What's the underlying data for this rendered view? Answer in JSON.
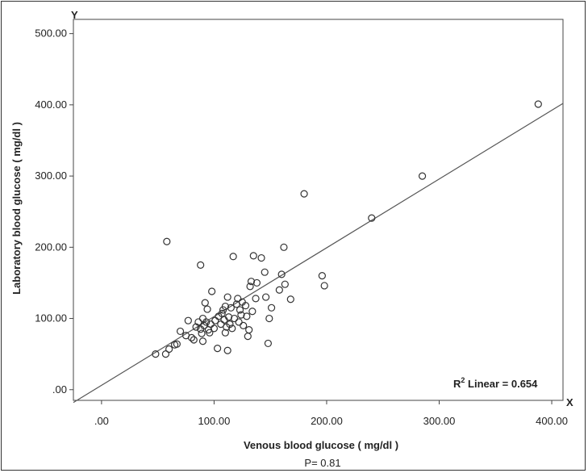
{
  "chart_data": {
    "type": "scatter",
    "xlabel": "Venous blood glucose ( mg/dl )",
    "ylabel": "Laboratory blood glucose ( mg/dl )",
    "x_axis_letter": "X",
    "y_axis_letter": "Y",
    "footnote": "P= 0.81",
    "r2_label": "R",
    "r2_sup": "2",
    "r2_text": " Linear = 0.654",
    "xlim": [
      -25,
      410
    ],
    "ylim": [
      -15,
      520
    ],
    "x_ticks": [
      0,
      100,
      200,
      300,
      400
    ],
    "x_tick_labels": [
      ".00",
      "100.00",
      "200.00",
      "300.00",
      "400.00"
    ],
    "y_ticks": [
      0,
      100,
      200,
      300,
      400,
      500
    ],
    "y_tick_labels": [
      ".00",
      "100.00",
      "200.00",
      "300.00",
      "400.00",
      "500.00"
    ],
    "grid": false,
    "fit_line": {
      "x": [
        -25,
        410
      ],
      "y": [
        -18,
        402
      ]
    },
    "points": [
      {
        "x": 48,
        "y": 50
      },
      {
        "x": 57,
        "y": 50
      },
      {
        "x": 60,
        "y": 57
      },
      {
        "x": 65,
        "y": 63
      },
      {
        "x": 67,
        "y": 64
      },
      {
        "x": 70,
        "y": 82
      },
      {
        "x": 75,
        "y": 76
      },
      {
        "x": 77,
        "y": 97
      },
      {
        "x": 80,
        "y": 73
      },
      {
        "x": 82,
        "y": 70
      },
      {
        "x": 84,
        "y": 88
      },
      {
        "x": 86,
        "y": 95
      },
      {
        "x": 88,
        "y": 85
      },
      {
        "x": 89,
        "y": 79
      },
      {
        "x": 90,
        "y": 100
      },
      {
        "x": 90,
        "y": 68
      },
      {
        "x": 91,
        "y": 90
      },
      {
        "x": 92,
        "y": 122
      },
      {
        "x": 93,
        "y": 95
      },
      {
        "x": 94,
        "y": 113
      },
      {
        "x": 95,
        "y": 84
      },
      {
        "x": 96,
        "y": 80
      },
      {
        "x": 97,
        "y": 92
      },
      {
        "x": 98,
        "y": 138
      },
      {
        "x": 100,
        "y": 86
      },
      {
        "x": 101,
        "y": 97
      },
      {
        "x": 103,
        "y": 58
      },
      {
        "x": 104,
        "y": 103
      },
      {
        "x": 106,
        "y": 92
      },
      {
        "x": 107,
        "y": 107
      },
      {
        "x": 108,
        "y": 112
      },
      {
        "x": 109,
        "y": 98
      },
      {
        "x": 110,
        "y": 117
      },
      {
        "x": 110,
        "y": 80
      },
      {
        "x": 111,
        "y": 88
      },
      {
        "x": 112,
        "y": 130
      },
      {
        "x": 112,
        "y": 55
      },
      {
        "x": 113,
        "y": 102
      },
      {
        "x": 114,
        "y": 92
      },
      {
        "x": 115,
        "y": 115
      },
      {
        "x": 116,
        "y": 86
      },
      {
        "x": 117,
        "y": 187
      },
      {
        "x": 118,
        "y": 100
      },
      {
        "x": 120,
        "y": 120
      },
      {
        "x": 121,
        "y": 128
      },
      {
        "x": 122,
        "y": 95
      },
      {
        "x": 123,
        "y": 112
      },
      {
        "x": 124,
        "y": 105
      },
      {
        "x": 125,
        "y": 123
      },
      {
        "x": 126,
        "y": 90
      },
      {
        "x": 128,
        "y": 118
      },
      {
        "x": 129,
        "y": 103
      },
      {
        "x": 130,
        "y": 75
      },
      {
        "x": 131,
        "y": 84
      },
      {
        "x": 132,
        "y": 145
      },
      {
        "x": 133,
        "y": 152
      },
      {
        "x": 134,
        "y": 110
      },
      {
        "x": 135,
        "y": 188
      },
      {
        "x": 137,
        "y": 128
      },
      {
        "x": 138,
        "y": 150
      },
      {
        "x": 142,
        "y": 185
      },
      {
        "x": 145,
        "y": 165
      },
      {
        "x": 146,
        "y": 130
      },
      {
        "x": 148,
        "y": 65
      },
      {
        "x": 149,
        "y": 100
      },
      {
        "x": 151,
        "y": 115
      },
      {
        "x": 158,
        "y": 140
      },
      {
        "x": 160,
        "y": 162
      },
      {
        "x": 162,
        "y": 200
      },
      {
        "x": 163,
        "y": 148
      },
      {
        "x": 168,
        "y": 127
      },
      {
        "x": 58,
        "y": 208
      },
      {
        "x": 88,
        "y": 175
      },
      {
        "x": 180,
        "y": 275
      },
      {
        "x": 196,
        "y": 160
      },
      {
        "x": 198,
        "y": 146
      },
      {
        "x": 240,
        "y": 241
      },
      {
        "x": 285,
        "y": 300
      },
      {
        "x": 388,
        "y": 401
      }
    ]
  }
}
